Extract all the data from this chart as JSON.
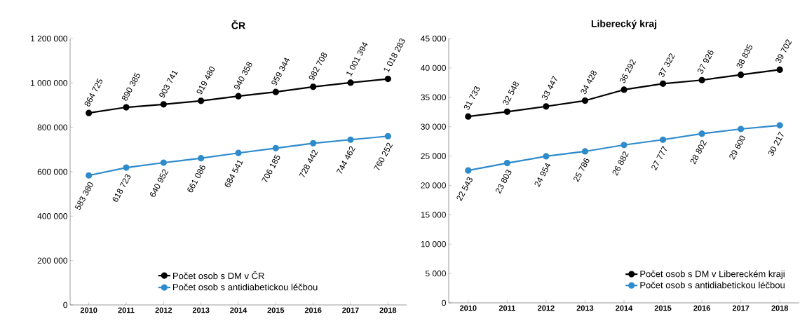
{
  "chart_data": [
    {
      "type": "line",
      "title": "ČR",
      "categories": [
        "2010",
        "2011",
        "2012",
        "2013",
        "2014",
        "2015",
        "2016",
        "2017",
        "2018"
      ],
      "series": [
        {
          "name": "Počet osob s DM v ČR",
          "color": "#000000",
          "values": [
            864725,
            890385,
            903741,
            919480,
            940358,
            959344,
            982708,
            1001394,
            1018283
          ],
          "value_labels": [
            "864 725",
            "890 385",
            "903 741",
            "919 480",
            "940 358",
            "959 344",
            "982 708",
            "1 001 394",
            "1 018 283"
          ]
        },
        {
          "name": "Počet osob s antidiabetickou léčbou",
          "color": "#2e8bcc",
          "values": [
            583380,
            618723,
            640952,
            661086,
            684541,
            706185,
            728442,
            744462,
            760252
          ],
          "value_labels": [
            "583 380",
            "618 723",
            "640 952",
            "661 086",
            "684 541",
            "706 185",
            "728 442",
            "744 462",
            "760 252"
          ]
        }
      ],
      "ylim": [
        0,
        1200000
      ],
      "yticks": [
        {
          "value": 0,
          "label": "0"
        },
        {
          "value": 200000,
          "label": "200 000"
        },
        {
          "value": 400000,
          "label": "400 000"
        },
        {
          "value": 600000,
          "label": "600 000"
        },
        {
          "value": 800000,
          "label": "800 000"
        },
        {
          "value": 1000000,
          "label": "1 000 000"
        },
        {
          "value": 1200000,
          "label": "1 200 000"
        }
      ],
      "legend": "bottom",
      "marker": "circle"
    },
    {
      "type": "line",
      "title": "Liberecký kraj",
      "categories": [
        "2010",
        "2011",
        "2012",
        "2013",
        "2014",
        "2015",
        "2016",
        "2017",
        "2018"
      ],
      "series": [
        {
          "name": "Počet osob s DM v Libereckém kraji",
          "color": "#000000",
          "values": [
            31733,
            32548,
            33447,
            34428,
            36292,
            37322,
            37926,
            38835,
            39702
          ],
          "value_labels": [
            "31 733",
            "32 548",
            "33 447",
            "34 428",
            "36 292",
            "37 322",
            "37 926",
            "38 835",
            "39 702"
          ]
        },
        {
          "name": "Počet osob s antidiabetickou léčbou",
          "color": "#2e8bcc",
          "values": [
            22543,
            23803,
            24954,
            25786,
            26882,
            27777,
            28802,
            29600,
            30217
          ],
          "value_labels": [
            "22 543",
            "23 803",
            "24 954",
            "25 786",
            "26 882",
            "27 777",
            "28 802",
            "29 600",
            "30 217"
          ]
        }
      ],
      "ylim": [
        0,
        45000
      ],
      "yticks": [
        {
          "value": 0,
          "label": "0"
        },
        {
          "value": 5000,
          "label": "5 000"
        },
        {
          "value": 10000,
          "label": "10 000"
        },
        {
          "value": 15000,
          "label": "15 000"
        },
        {
          "value": 20000,
          "label": "20 000"
        },
        {
          "value": 25000,
          "label": "25 000"
        },
        {
          "value": 30000,
          "label": "30 000"
        },
        {
          "value": 35000,
          "label": "35 000"
        },
        {
          "value": 40000,
          "label": "40 000"
        },
        {
          "value": 45000,
          "label": "45 000"
        }
      ],
      "legend": "bottom right",
      "marker": "circle"
    }
  ]
}
